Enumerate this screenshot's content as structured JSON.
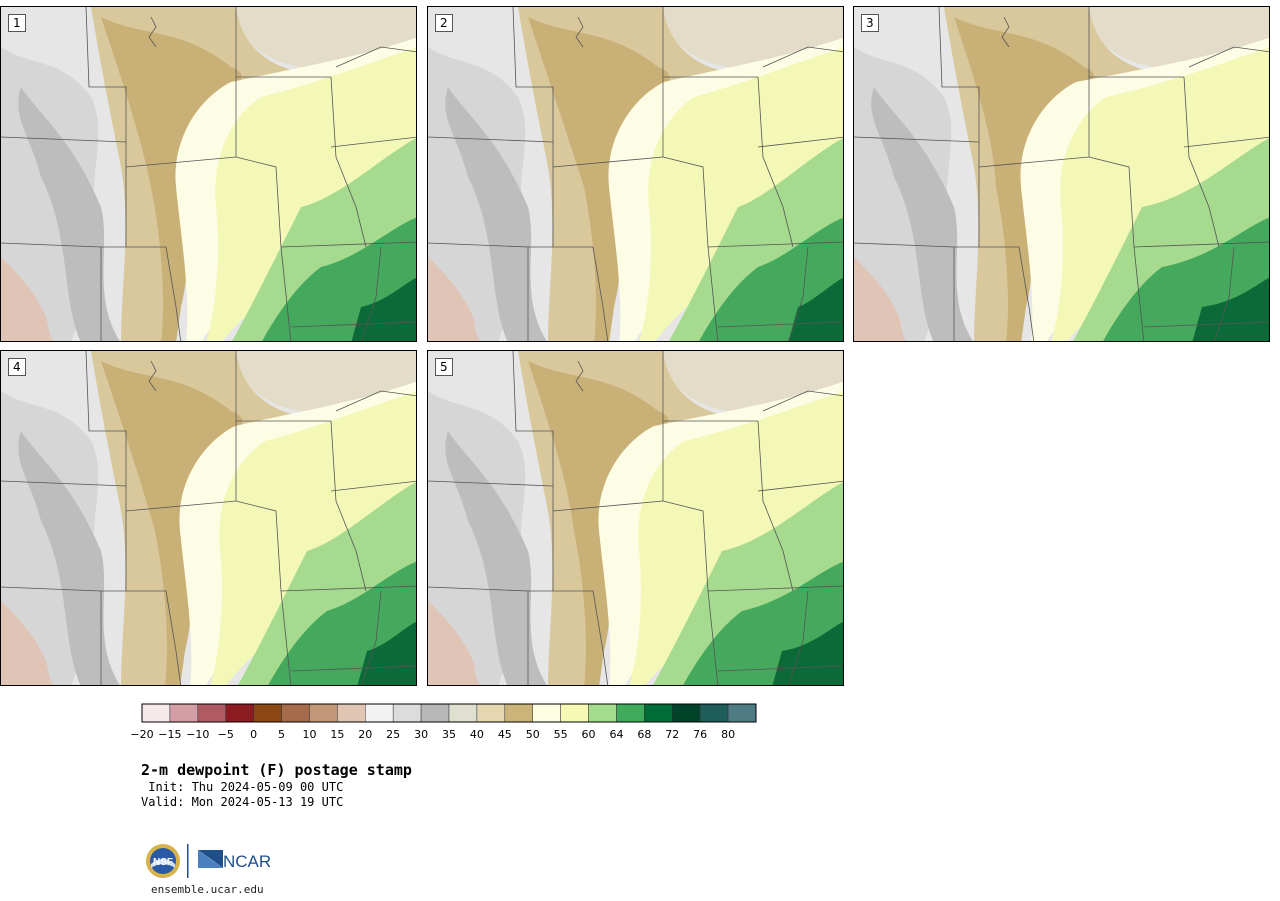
{
  "panels": [
    {
      "label": "1",
      "variant": 0
    },
    {
      "label": "2",
      "variant": 1
    },
    {
      "label": "3",
      "variant": 2
    },
    {
      "label": "4",
      "variant": 3
    },
    {
      "label": "5",
      "variant": 4
    }
  ],
  "colorbar": {
    "colors": [
      "#f5e9ea",
      "#d39ea5",
      "#b15a62",
      "#8c1b22",
      "#8c4713",
      "#a56b4b",
      "#c39777",
      "#e0c6b3",
      "#f2f2f2",
      "#dcdcdc",
      "#b8b8b8",
      "#e0e0d1",
      "#e6d7b2",
      "#cbb47a",
      "#fdfde2",
      "#f5f9b4",
      "#a4dc8e",
      "#41ab5d",
      "#006d37",
      "#00422a",
      "#1f5d5b",
      "#4e7b84"
    ],
    "tick_labels": [
      "−20",
      "−15",
      "−10",
      "−5",
      "0",
      "5",
      "10",
      "15",
      "20",
      "25",
      "30",
      "35",
      "40",
      "45",
      "50",
      "55",
      "60",
      "64",
      "68",
      "72",
      "76",
      "80"
    ]
  },
  "title": "2-m dewpoint (F) postage stamp",
  "init": " Init: Thu 2024-05-09 00 UTC",
  "valid": "Valid: Mon 2024-05-13 19 UTC",
  "logos": {
    "nsf": "NSF",
    "ncar": "NCAR"
  },
  "url": "ensemble.ucar.edu"
}
